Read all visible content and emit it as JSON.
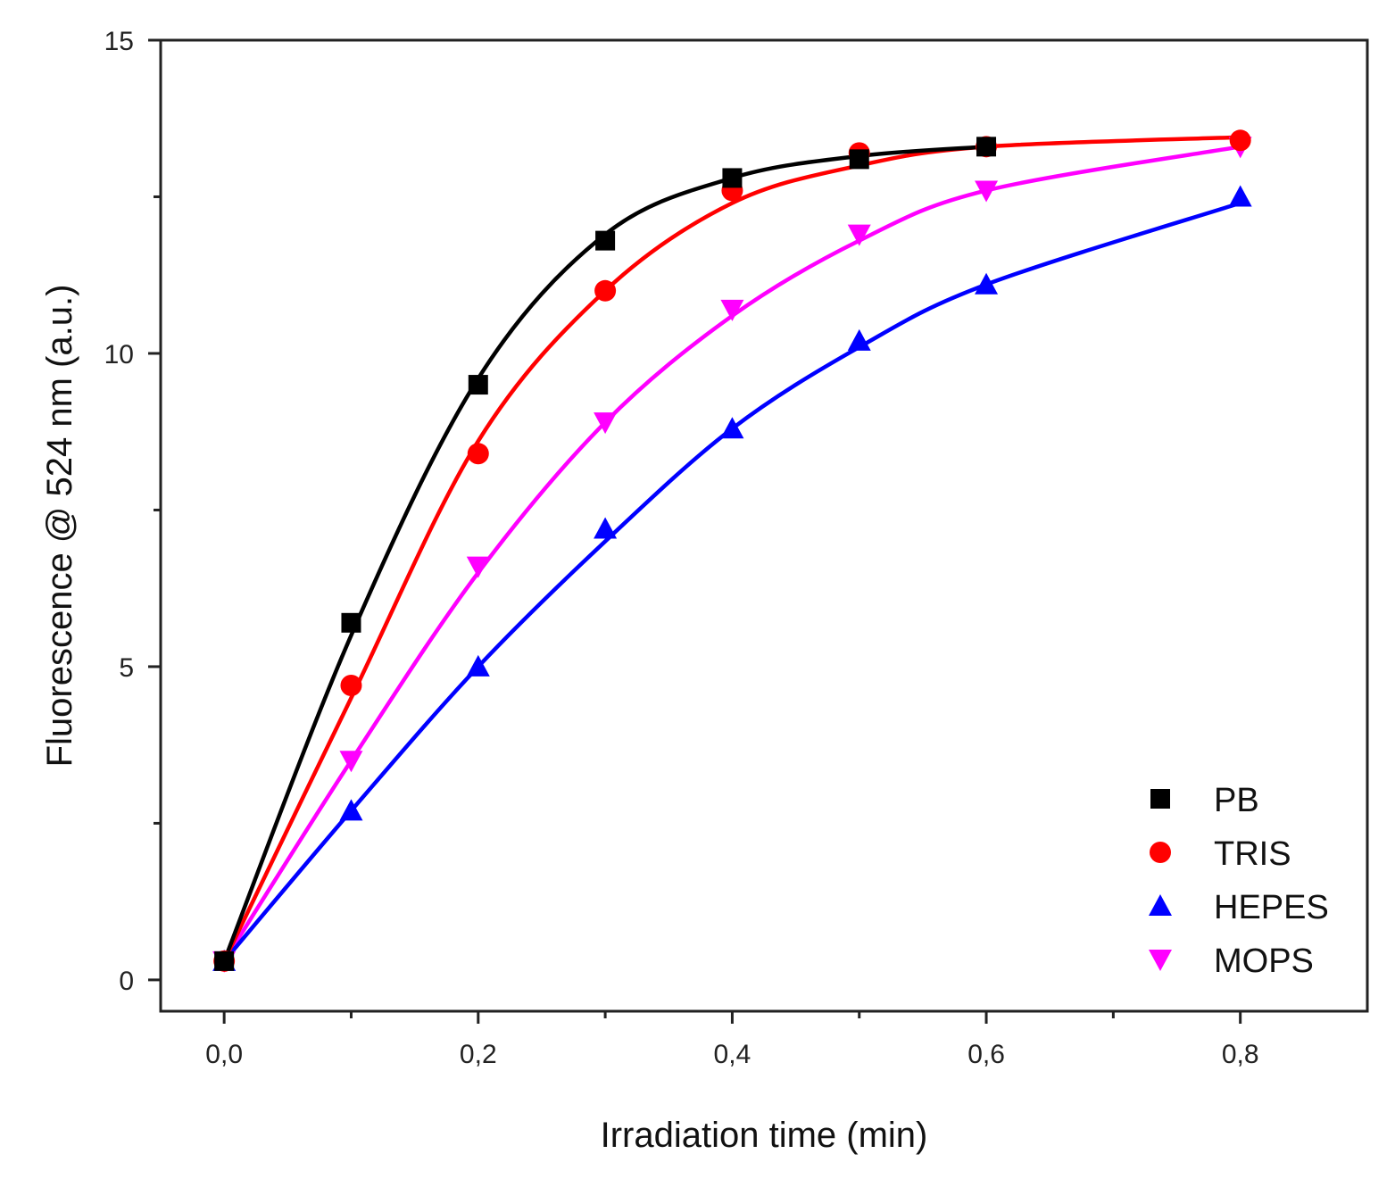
{
  "chart_data": {
    "type": "line",
    "title": "",
    "xlabel": "Irradiation time (min)",
    "ylabel": "Fluorescence @ 524 nm (a.u.)",
    "xlim": [
      -0.05,
      0.9
    ],
    "ylim": [
      -0.5,
      15
    ],
    "x_ticks": [
      0.0,
      0.2,
      0.4,
      0.6,
      0.8
    ],
    "x_tick_labels": [
      "0,0",
      "0,2",
      "0,4",
      "0,6",
      "0,8"
    ],
    "x_minor_ticks": [
      0.1,
      0.3,
      0.5,
      0.7
    ],
    "y_ticks": [
      0,
      5,
      10,
      15
    ],
    "y_tick_labels": [
      "0",
      "5",
      "10",
      "15"
    ],
    "y_minor_ticks": [
      2.5,
      7.5,
      12.5
    ],
    "grid": false,
    "legend_position": "bottom-right",
    "series": [
      {
        "name": "PB",
        "color": "#000000",
        "marker": "square",
        "x": [
          0.0,
          0.1,
          0.2,
          0.3,
          0.4,
          0.5,
          0.6
        ],
        "y": [
          0.3,
          5.7,
          9.5,
          11.8,
          12.8,
          13.1,
          13.3
        ],
        "fit_y": [
          0.3,
          5.5,
          9.6,
          11.9,
          12.8,
          13.15,
          13.3
        ]
      },
      {
        "name": "TRIS",
        "color": "#ff0000",
        "marker": "circle",
        "x": [
          0.0,
          0.1,
          0.2,
          0.3,
          0.4,
          0.5,
          0.6,
          0.8
        ],
        "y": [
          0.3,
          4.7,
          8.4,
          11.0,
          12.6,
          13.2,
          13.3,
          13.4
        ],
        "fit_y": [
          0.3,
          4.5,
          8.6,
          11.0,
          12.4,
          13.0,
          13.3,
          13.45
        ]
      },
      {
        "name": "HEPES",
        "color": "#0000ff",
        "marker": "triangle-up",
        "x": [
          0.0,
          0.1,
          0.2,
          0.3,
          0.4,
          0.5,
          0.6,
          0.8
        ],
        "y": [
          0.3,
          2.7,
          5.0,
          7.2,
          8.8,
          10.2,
          11.1,
          12.5
        ],
        "fit_y": [
          0.3,
          2.7,
          5.0,
          7.0,
          8.8,
          10.1,
          11.1,
          12.4
        ]
      },
      {
        "name": "MOPS",
        "color": "#ff00ff",
        "marker": "triangle-down",
        "x": [
          0.0,
          0.1,
          0.2,
          0.3,
          0.4,
          0.5,
          0.6,
          0.8
        ],
        "y": [
          0.3,
          3.5,
          6.6,
          8.9,
          10.7,
          11.9,
          12.6,
          13.3
        ],
        "fit_y": [
          0.3,
          3.5,
          6.5,
          8.9,
          10.6,
          11.8,
          12.6,
          13.3
        ]
      }
    ]
  }
}
